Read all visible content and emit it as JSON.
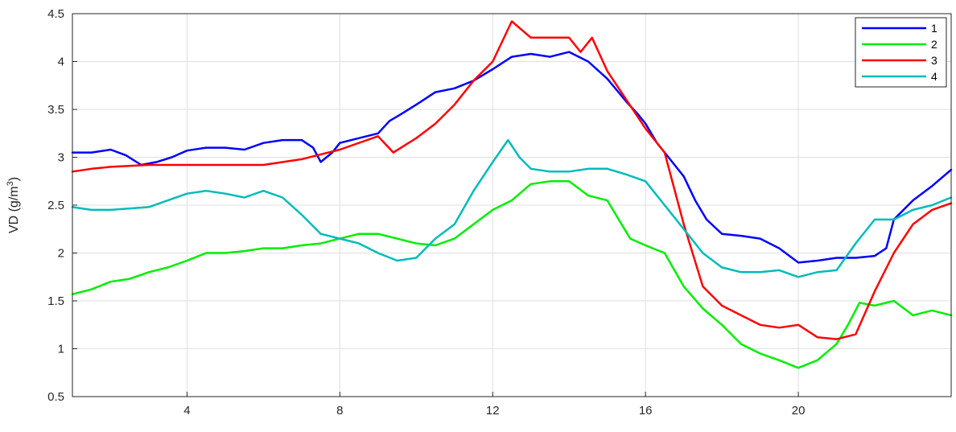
{
  "chart_data": {
    "type": "line",
    "title": "",
    "xlabel": "",
    "ylabel": "VD (g/m",
    "ylabel_sup": "3",
    "ylabel_close": ")",
    "xlim": [
      1,
      24
    ],
    "ylim": [
      0.5,
      4.5
    ],
    "xticks": [
      4,
      8,
      12,
      16,
      20
    ],
    "yticks": [
      0.5,
      1,
      1.5,
      2,
      2.5,
      3,
      3.5,
      4,
      4.5
    ],
    "xtick_labels": [
      "4",
      "8",
      "12",
      "16",
      "20"
    ],
    "ytick_labels": [
      "0.5",
      "1",
      "1.5",
      "2",
      "2.5",
      "3",
      "3.5",
      "4",
      "4.5"
    ],
    "grid": true,
    "legend_position": "top-right",
    "series": [
      {
        "name": "1",
        "color": "#0000ff",
        "points": [
          [
            1,
            3.05
          ],
          [
            1.5,
            3.05
          ],
          [
            2,
            3.08
          ],
          [
            2.4,
            3.02
          ],
          [
            2.8,
            2.92
          ],
          [
            3.2,
            2.95
          ],
          [
            3.6,
            3.0
          ],
          [
            4,
            3.07
          ],
          [
            4.5,
            3.1
          ],
          [
            5,
            3.1
          ],
          [
            5.5,
            3.08
          ],
          [
            6,
            3.15
          ],
          [
            6.5,
            3.18
          ],
          [
            7,
            3.18
          ],
          [
            7.3,
            3.1
          ],
          [
            7.5,
            2.95
          ],
          [
            7.8,
            3.05
          ],
          [
            8,
            3.15
          ],
          [
            8.5,
            3.2
          ],
          [
            9,
            3.25
          ],
          [
            9.3,
            3.38
          ],
          [
            9.6,
            3.45
          ],
          [
            10,
            3.55
          ],
          [
            10.5,
            3.68
          ],
          [
            11,
            3.72
          ],
          [
            11.5,
            3.8
          ],
          [
            12,
            3.92
          ],
          [
            12.5,
            4.05
          ],
          [
            13,
            4.08
          ],
          [
            13.5,
            4.05
          ],
          [
            14,
            4.1
          ],
          [
            14.5,
            4.0
          ],
          [
            15,
            3.82
          ],
          [
            15.5,
            3.58
          ],
          [
            15.8,
            3.45
          ],
          [
            16,
            3.35
          ],
          [
            16.3,
            3.15
          ],
          [
            16.6,
            3.0
          ],
          [
            17,
            2.8
          ],
          [
            17.3,
            2.55
          ],
          [
            17.6,
            2.35
          ],
          [
            18,
            2.2
          ],
          [
            18.5,
            2.18
          ],
          [
            19,
            2.15
          ],
          [
            19.5,
            2.05
          ],
          [
            20,
            1.9
          ],
          [
            20.5,
            1.92
          ],
          [
            21,
            1.95
          ],
          [
            21.5,
            1.95
          ],
          [
            22,
            1.97
          ],
          [
            22.3,
            2.05
          ],
          [
            22.5,
            2.35
          ],
          [
            23,
            2.55
          ],
          [
            23.5,
            2.7
          ],
          [
            24,
            2.87
          ]
        ]
      },
      {
        "name": "2",
        "color": "#00ee00",
        "points": [
          [
            1,
            1.57
          ],
          [
            1.5,
            1.62
          ],
          [
            2,
            1.7
          ],
          [
            2.5,
            1.73
          ],
          [
            3,
            1.8
          ],
          [
            3.5,
            1.85
          ],
          [
            4,
            1.92
          ],
          [
            4.5,
            2.0
          ],
          [
            5,
            2.0
          ],
          [
            5.5,
            2.02
          ],
          [
            6,
            2.05
          ],
          [
            6.5,
            2.05
          ],
          [
            7,
            2.08
          ],
          [
            7.5,
            2.1
          ],
          [
            8,
            2.15
          ],
          [
            8.5,
            2.2
          ],
          [
            9,
            2.2
          ],
          [
            9.5,
            2.15
          ],
          [
            10,
            2.1
          ],
          [
            10.5,
            2.08
          ],
          [
            11,
            2.15
          ],
          [
            11.5,
            2.3
          ],
          [
            12,
            2.45
          ],
          [
            12.5,
            2.55
          ],
          [
            13,
            2.72
          ],
          [
            13.5,
            2.75
          ],
          [
            14,
            2.75
          ],
          [
            14.5,
            2.6
          ],
          [
            15,
            2.55
          ],
          [
            15.3,
            2.35
          ],
          [
            15.6,
            2.15
          ],
          [
            16,
            2.08
          ],
          [
            16.5,
            2.0
          ],
          [
            17,
            1.65
          ],
          [
            17.5,
            1.42
          ],
          [
            18,
            1.25
          ],
          [
            18.5,
            1.05
          ],
          [
            19,
            0.95
          ],
          [
            19.5,
            0.88
          ],
          [
            20,
            0.8
          ],
          [
            20.5,
            0.88
          ],
          [
            21,
            1.05
          ],
          [
            21.3,
            1.25
          ],
          [
            21.6,
            1.48
          ],
          [
            22,
            1.45
          ],
          [
            22.5,
            1.5
          ],
          [
            23,
            1.35
          ],
          [
            23.5,
            1.4
          ],
          [
            24,
            1.35
          ]
        ]
      },
      {
        "name": "3",
        "color": "#ff0000",
        "points": [
          [
            1,
            2.85
          ],
          [
            1.5,
            2.88
          ],
          [
            2,
            2.9
          ],
          [
            3,
            2.92
          ],
          [
            4,
            2.92
          ],
          [
            5,
            2.92
          ],
          [
            6,
            2.92
          ],
          [
            7,
            2.98
          ],
          [
            8,
            3.08
          ],
          [
            9,
            3.22
          ],
          [
            9.4,
            3.05
          ],
          [
            10,
            3.2
          ],
          [
            10.5,
            3.35
          ],
          [
            11,
            3.55
          ],
          [
            11.5,
            3.8
          ],
          [
            12,
            4.0
          ],
          [
            12.5,
            4.42
          ],
          [
            13,
            4.25
          ],
          [
            13.5,
            4.25
          ],
          [
            14,
            4.25
          ],
          [
            14.3,
            4.1
          ],
          [
            14.6,
            4.25
          ],
          [
            15,
            3.9
          ],
          [
            15.5,
            3.6
          ],
          [
            16,
            3.3
          ],
          [
            16.5,
            3.05
          ],
          [
            17,
            2.3
          ],
          [
            17.5,
            1.65
          ],
          [
            18,
            1.45
          ],
          [
            18.5,
            1.35
          ],
          [
            19,
            1.25
          ],
          [
            19.5,
            1.22
          ],
          [
            20,
            1.25
          ],
          [
            20.5,
            1.12
          ],
          [
            21,
            1.1
          ],
          [
            21.5,
            1.15
          ],
          [
            22,
            1.6
          ],
          [
            22.5,
            2.0
          ],
          [
            23,
            2.3
          ],
          [
            23.5,
            2.45
          ],
          [
            24,
            2.52
          ]
        ]
      },
      {
        "name": "4",
        "color": "#00bbbb",
        "points": [
          [
            1,
            2.48
          ],
          [
            1.5,
            2.45
          ],
          [
            2,
            2.45
          ],
          [
            3,
            2.48
          ],
          [
            4,
            2.62
          ],
          [
            4.5,
            2.65
          ],
          [
            5,
            2.62
          ],
          [
            5.5,
            2.58
          ],
          [
            6,
            2.65
          ],
          [
            6.5,
            2.58
          ],
          [
            7,
            2.4
          ],
          [
            7.5,
            2.2
          ],
          [
            8,
            2.15
          ],
          [
            8.5,
            2.1
          ],
          [
            9,
            2.0
          ],
          [
            9.5,
            1.92
          ],
          [
            10,
            1.95
          ],
          [
            10.5,
            2.15
          ],
          [
            11,
            2.3
          ],
          [
            11.5,
            2.65
          ],
          [
            12,
            2.95
          ],
          [
            12.4,
            3.18
          ],
          [
            12.7,
            3.0
          ],
          [
            13,
            2.88
          ],
          [
            13.5,
            2.85
          ],
          [
            14,
            2.85
          ],
          [
            14.5,
            2.88
          ],
          [
            15,
            2.88
          ],
          [
            15.5,
            2.82
          ],
          [
            16,
            2.75
          ],
          [
            16.5,
            2.5
          ],
          [
            17,
            2.25
          ],
          [
            17.5,
            2.0
          ],
          [
            18,
            1.85
          ],
          [
            18.5,
            1.8
          ],
          [
            19,
            1.8
          ],
          [
            19.5,
            1.82
          ],
          [
            20,
            1.75
          ],
          [
            20.5,
            1.8
          ],
          [
            21,
            1.82
          ],
          [
            21.5,
            2.1
          ],
          [
            22,
            2.35
          ],
          [
            22.5,
            2.35
          ],
          [
            23,
            2.45
          ],
          [
            23.5,
            2.5
          ],
          [
            24,
            2.58
          ]
        ]
      }
    ]
  }
}
